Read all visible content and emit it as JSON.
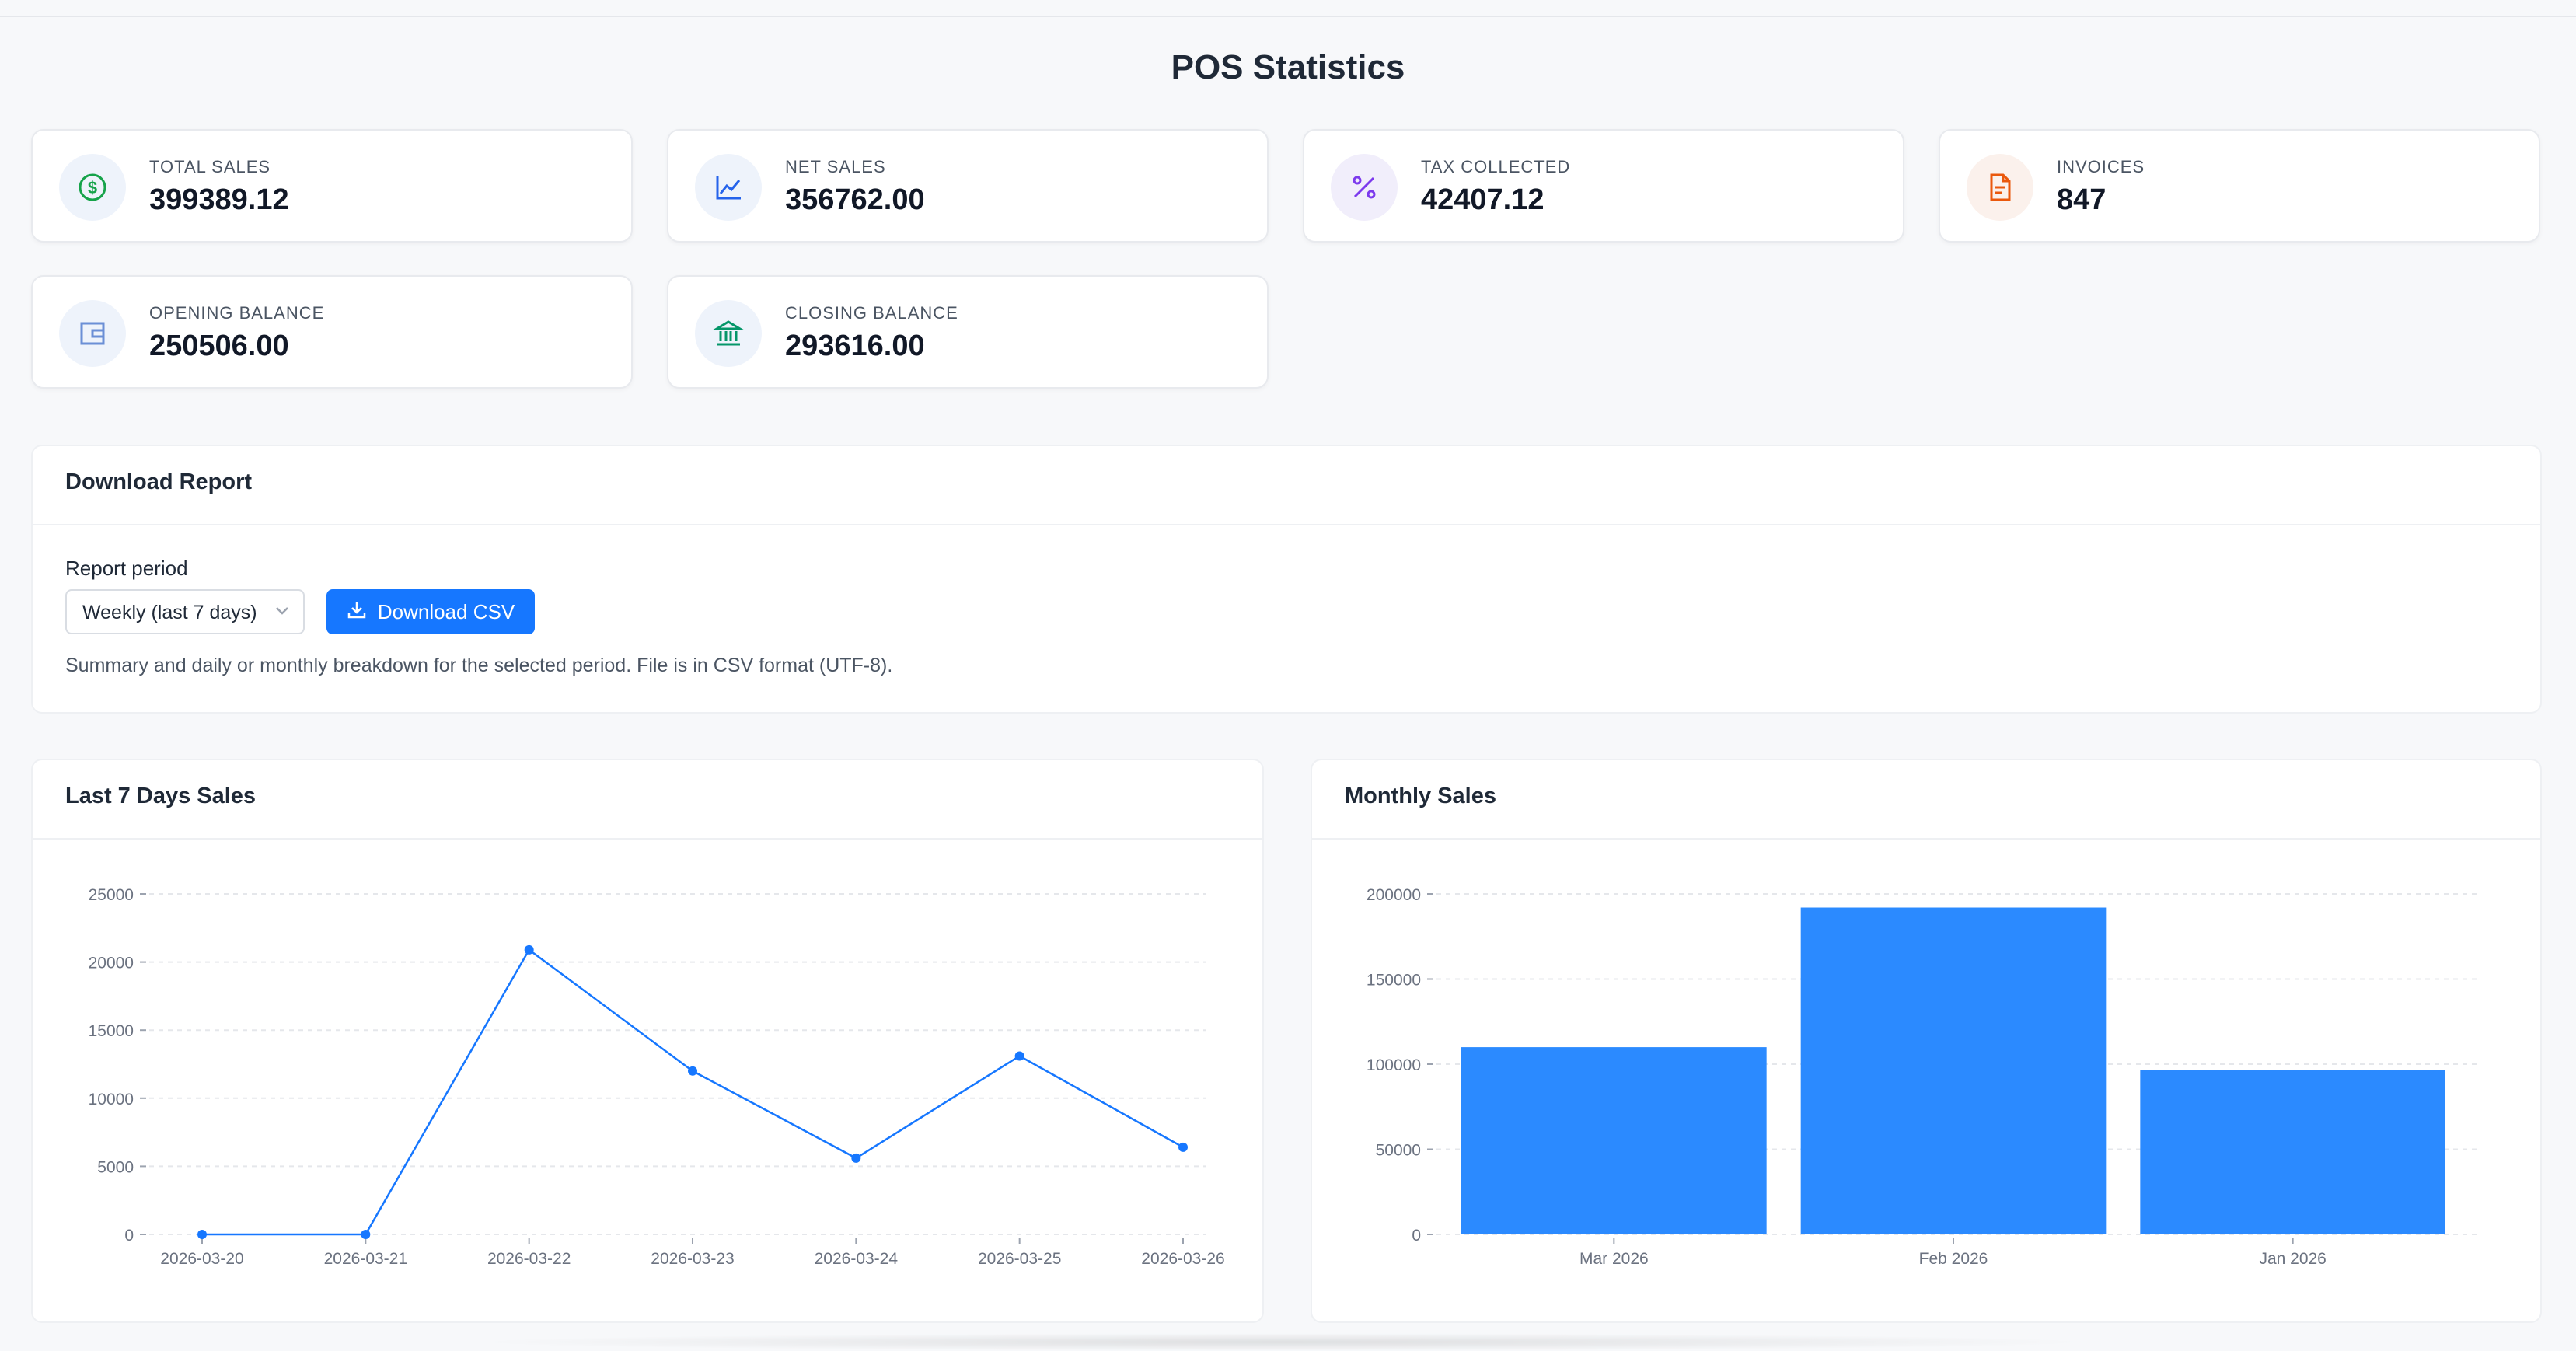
{
  "page": {
    "title": "POS Statistics"
  },
  "stats": [
    {
      "label": "TOTAL SALES",
      "value": "399389.12",
      "icon": "dollar-icon",
      "color": "#16a34a",
      "bg": "#eef3fb"
    },
    {
      "label": "NET SALES",
      "value": "356762.00",
      "icon": "line-chart-icon",
      "color": "#2563eb",
      "bg": "#eef3fb"
    },
    {
      "label": "TAX COLLECTED",
      "value": "42407.12",
      "icon": "percent-icon",
      "color": "#7c3aed",
      "bg": "#f1eefb"
    },
    {
      "label": "INVOICES",
      "value": "847",
      "icon": "document-icon",
      "color": "#ea580c",
      "bg": "#fbf1ec"
    },
    {
      "label": "OPENING BALANCE",
      "value": "250506.00",
      "icon": "wallet-icon",
      "color": "#6b8fd6",
      "bg": "#eef3fb"
    },
    {
      "label": "CLOSING BALANCE",
      "value": "293616.00",
      "icon": "bank-icon",
      "color": "#059669",
      "bg": "#eef3fb"
    }
  ],
  "report": {
    "title": "Download Report",
    "period_label": "Report period",
    "period_value": "Weekly (last 7 days)",
    "download_label": "Download CSV",
    "help_text": "Summary and daily or monthly breakdown for the selected period. File is in CSV format (UTF-8)."
  },
  "colors": {
    "accent": "#1677ff",
    "bar": "#2b8aff"
  },
  "chart_data": [
    {
      "type": "line",
      "title": "Last 7 Days Sales",
      "categories": [
        "2026-03-20",
        "2026-03-21",
        "2026-03-22",
        "2026-03-23",
        "2026-03-24",
        "2026-03-25",
        "2026-03-26"
      ],
      "values": [
        0,
        0,
        20900,
        12000,
        5600,
        13100,
        6400
      ],
      "yticks": [
        0,
        5000,
        10000,
        15000,
        20000,
        25000
      ],
      "ylim": [
        0,
        25000
      ],
      "grid": true
    },
    {
      "type": "bar",
      "title": "Monthly Sales",
      "categories": [
        "Mar 2026",
        "Feb 2026",
        "Jan 2026"
      ],
      "values": [
        110000,
        192000,
        96500
      ],
      "yticks": [
        0,
        50000,
        100000,
        150000,
        200000
      ],
      "ylim": [
        0,
        200000
      ],
      "grid": true
    }
  ]
}
